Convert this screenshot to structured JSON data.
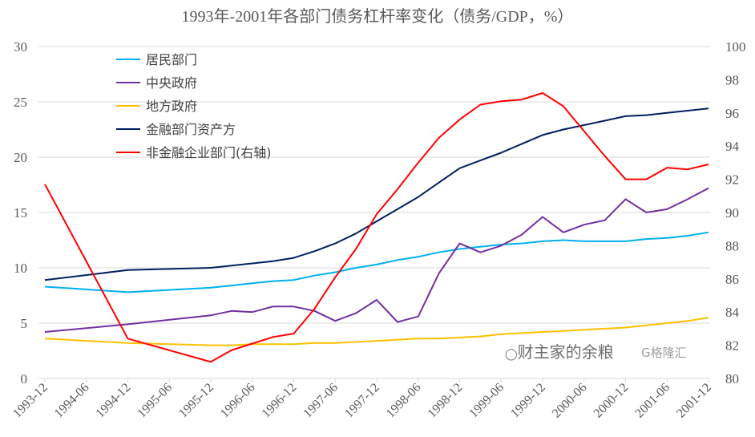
{
  "chart_data": {
    "type": "line",
    "title": "1993年-2001年各部门债务杠杆率变化（债务/GDP，%）",
    "x": [
      "1993-12",
      "1994-12",
      "1995-12",
      "1996-03",
      "1996-06",
      "1996-09",
      "1996-12",
      "1997-03",
      "1997-06",
      "1997-09",
      "1997-12",
      "1998-03",
      "1998-06",
      "1998-09",
      "1998-12",
      "1999-03",
      "1999-06",
      "1999-09",
      "1999-12",
      "2000-03",
      "2000-06",
      "2000-09",
      "2000-12",
      "2001-03",
      "2001-06",
      "2001-09",
      "2001-12"
    ],
    "x_tick_labels": [
      "1993-12",
      "1994-06",
      "1994-12",
      "1995-06",
      "1995-12",
      "1996-06",
      "1996-12",
      "1997-06",
      "1997-12",
      "1998-06",
      "1998-12",
      "1999-06",
      "1999-12",
      "2000-06",
      "2000-12",
      "2001-06",
      "2001-12"
    ],
    "y_left": {
      "range": [
        0,
        30
      ],
      "ticks": [
        0,
        5,
        10,
        15,
        20,
        25,
        30
      ]
    },
    "y_right": {
      "range": [
        80,
        100
      ],
      "ticks": [
        80,
        82,
        84,
        86,
        88,
        90,
        92,
        94,
        96,
        98,
        100
      ]
    },
    "grid": true,
    "legend_position": "top-left",
    "series": [
      {
        "name": "居民部门",
        "axis": "left",
        "color": "#00B0F0",
        "values": [
          8.3,
          7.8,
          8.2,
          8.4,
          8.6,
          8.8,
          8.9,
          9.3,
          9.6,
          10.0,
          10.3,
          10.7,
          11.0,
          11.4,
          11.7,
          11.9,
          12.1,
          12.2,
          12.4,
          12.5,
          12.4,
          12.4,
          12.4,
          12.6,
          12.7,
          12.9,
          13.2
        ]
      },
      {
        "name": "中央政府",
        "axis": "left",
        "color": "#7030A0",
        "values": [
          4.2,
          4.9,
          5.7,
          6.1,
          6.0,
          6.5,
          6.5,
          6.1,
          5.2,
          5.9,
          7.1,
          5.1,
          5.6,
          9.5,
          12.2,
          11.4,
          12.0,
          13.0,
          14.6,
          13.2,
          13.9,
          14.3,
          16.2,
          15.0,
          15.3,
          16.2,
          17.2
        ]
      },
      {
        "name": "地方政府",
        "axis": "left",
        "color": "#FFC000",
        "values": [
          3.6,
          3.2,
          3.0,
          3.0,
          3.1,
          3.1,
          3.1,
          3.2,
          3.2,
          3.3,
          3.4,
          3.5,
          3.6,
          3.6,
          3.7,
          3.8,
          4.0,
          4.1,
          4.2,
          4.3,
          4.4,
          4.5,
          4.6,
          4.8,
          5.0,
          5.2,
          5.5
        ]
      },
      {
        "name": "金融部门资产方",
        "axis": "left",
        "color": "#002060",
        "values": [
          8.9,
          9.8,
          10.0,
          10.2,
          10.4,
          10.6,
          10.9,
          11.5,
          12.2,
          13.1,
          14.2,
          15.3,
          16.4,
          17.7,
          19.0,
          19.7,
          20.4,
          21.2,
          22.0,
          22.5,
          22.9,
          23.3,
          23.7,
          23.8,
          24.0,
          24.2,
          24.4
        ]
      },
      {
        "name": "非金融企业部门(右轴)",
        "axis": "right",
        "color": "#FF0000",
        "values": [
          91.7,
          82.4,
          81.0,
          81.7,
          82.1,
          82.5,
          82.7,
          84.2,
          86.1,
          87.8,
          89.9,
          91.4,
          93.0,
          94.5,
          95.6,
          96.5,
          96.7,
          96.8,
          97.2,
          96.4,
          94.9,
          93.4,
          92.0,
          92.0,
          92.7,
          92.6,
          92.9
        ]
      }
    ]
  },
  "watermarks": {
    "wechat": "财主家的余粮",
    "brand": "格隆汇"
  }
}
